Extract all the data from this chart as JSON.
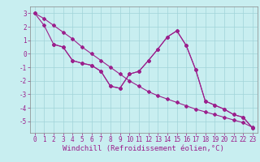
{
  "line1_x": [
    0,
    1,
    2,
    3,
    4,
    5,
    6,
    7,
    8,
    9,
    10,
    11,
    12,
    13,
    14,
    15,
    16,
    17,
    18,
    19,
    20,
    21,
    22,
    23
  ],
  "line1_y": [
    3.0,
    2.1,
    0.7,
    0.5,
    -0.5,
    -0.7,
    -0.85,
    -1.3,
    -2.4,
    -2.55,
    -1.5,
    -1.3,
    -0.5,
    0.35,
    1.25,
    1.7,
    0.6,
    -1.2,
    -3.5,
    -3.8,
    -4.1,
    -4.5,
    -4.7,
    -5.5
  ],
  "line2_x": [
    2,
    3,
    4,
    5,
    6,
    7,
    8,
    9,
    10,
    11,
    12,
    13,
    14,
    15,
    16,
    17,
    18,
    19,
    20,
    21,
    22,
    23
  ],
  "line2_y": [
    0.7,
    0.5,
    -0.5,
    -0.7,
    -0.85,
    -1.3,
    -2.4,
    -2.55,
    -1.5,
    -1.3,
    -0.5,
    0.35,
    1.25,
    1.7,
    0.6,
    -1.2,
    -3.5,
    -3.8,
    -4.1,
    -4.5,
    -4.7,
    -5.5
  ],
  "line3_x": [
    0,
    1,
    2,
    3,
    4,
    5,
    6,
    7,
    8,
    9,
    10,
    11,
    12,
    13,
    14,
    15,
    16,
    17,
    18,
    19,
    20,
    21,
    22,
    23
  ],
  "line3_y": [
    3.0,
    2.6,
    2.1,
    1.6,
    1.1,
    0.5,
    0.0,
    -0.5,
    -1.0,
    -1.5,
    -2.0,
    -2.4,
    -2.8,
    -3.1,
    -3.35,
    -3.6,
    -3.85,
    -4.1,
    -4.3,
    -4.5,
    -4.7,
    -4.9,
    -5.1,
    -5.45
  ],
  "line_color": "#9B1F8C",
  "bg_color": "#C8EEF0",
  "grid_color": "#A0D4D8",
  "xlabel": "Windchill (Refroidissement éolien,°C)",
  "xlim": [
    -0.5,
    23.5
  ],
  "ylim": [
    -5.85,
    3.5
  ],
  "yticks": [
    3,
    2,
    1,
    0,
    -1,
    -2,
    -3,
    -4,
    -5
  ],
  "xticks": [
    0,
    1,
    2,
    3,
    4,
    5,
    6,
    7,
    8,
    9,
    10,
    11,
    12,
    13,
    14,
    15,
    16,
    17,
    18,
    19,
    20,
    21,
    22,
    23
  ],
  "marker": "D",
  "marker_size": 2.0,
  "line_width": 0.8,
  "font_size": 5.5,
  "label_font_size": 6.5
}
